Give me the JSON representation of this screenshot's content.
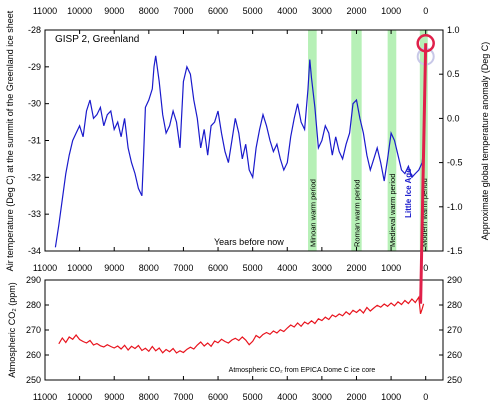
{
  "colors": {
    "temperature": "#1a1acc",
    "co2": "#e8141e",
    "warm_band": "#b6f0b6",
    "little_ice_age": "#1a1acc",
    "modern_marker": "#e0204a",
    "modern_marker_ghost": "#c8c8e8"
  },
  "chart_data": [
    {
      "type": "line",
      "title": "GISP 2, Greenland",
      "xlabel": "Years before now",
      "ylabel": "Air temperature (Deg C) at the summit of the Greenland ice sheet",
      "y2label": "Approximate global temperature anomaly (Deg C)",
      "xlim": [
        11000,
        -500
      ],
      "x_reversed": true,
      "ylim": [
        -34,
        -28
      ],
      "y2lim": [
        -1.5,
        1.0
      ],
      "grid": false,
      "x_ticks": [
        11000,
        10000,
        9000,
        8000,
        7000,
        6000,
        5000,
        4000,
        3000,
        2000,
        1000,
        0
      ],
      "y_ticks": [
        -28,
        -29,
        -30,
        -31,
        -32,
        -33,
        -34
      ],
      "y2_ticks": [
        1.0,
        0.5,
        0.0,
        -0.5,
        -1.0,
        -1.5
      ],
      "warm_periods": [
        {
          "name": "Minoan warm period",
          "x_from": 3400,
          "x_to": 3150
        },
        {
          "name": "Roman warm period",
          "x_from": 2150,
          "x_to": 1850
        },
        {
          "name": "Medieval warm period",
          "x_from": 1100,
          "x_to": 850
        },
        {
          "name": "Modern warm period",
          "x_from": 170,
          "x_to": -60
        }
      ],
      "annotations": [
        {
          "text": "Little Ice Age",
          "x": 420,
          "y": -33.1
        }
      ],
      "modern_point": {
        "x": 0,
        "y": 0.85,
        "axis": "y2"
      },
      "series": [
        {
          "x": [
            10700,
            10600,
            10500,
            10400,
            10300,
            10200,
            10100,
            10000,
            9900,
            9800,
            9700,
            9600,
            9500,
            9400,
            9300,
            9200,
            9100,
            9000,
            8900,
            8800,
            8700,
            8600,
            8500,
            8400,
            8300,
            8200,
            8150,
            8100,
            8000,
            7900,
            7850,
            7800,
            7700,
            7600,
            7500,
            7400,
            7300,
            7200,
            7100,
            7000,
            6900,
            6800,
            6700,
            6600,
            6500,
            6400,
            6300,
            6200,
            6100,
            6000,
            5900,
            5800,
            5700,
            5600,
            5500,
            5400,
            5300,
            5200,
            5100,
            5000,
            4900,
            4800,
            4700,
            4600,
            4500,
            4400,
            4300,
            4200,
            4100,
            4000,
            3900,
            3800,
            3700,
            3600,
            3500,
            3400,
            3350,
            3300,
            3200,
            3100,
            3000,
            2900,
            2800,
            2700,
            2600,
            2500,
            2400,
            2300,
            2200,
            2100,
            2000,
            1900,
            1800,
            1700,
            1600,
            1500,
            1400,
            1300,
            1200,
            1100,
            1000,
            900,
            800,
            700,
            600,
            500,
            400,
            300,
            200,
            100,
            50
          ],
          "values": [
            -33.9,
            -33.3,
            -32.6,
            -31.9,
            -31.4,
            -31.0,
            -30.8,
            -30.6,
            -30.9,
            -30.2,
            -29.9,
            -30.4,
            -30.3,
            -30.1,
            -30.6,
            -30.3,
            -30.2,
            -30.7,
            -30.5,
            -30.9,
            -30.4,
            -31.2,
            -31.6,
            -31.9,
            -32.3,
            -32.5,
            -31.4,
            -30.1,
            -29.9,
            -29.6,
            -29.0,
            -28.7,
            -29.4,
            -30.3,
            -30.8,
            -30.6,
            -30.2,
            -30.5,
            -31.2,
            -29.4,
            -29.0,
            -29.2,
            -29.9,
            -30.4,
            -31.2,
            -30.7,
            -31.4,
            -30.6,
            -30.5,
            -30.2,
            -30.8,
            -31.3,
            -31.6,
            -31.0,
            -30.4,
            -30.8,
            -31.5,
            -31.1,
            -31.8,
            -32.0,
            -31.2,
            -30.7,
            -30.3,
            -30.6,
            -31.0,
            -31.3,
            -31.1,
            -31.5,
            -31.8,
            -31.6,
            -30.9,
            -30.4,
            -30.0,
            -30.5,
            -30.7,
            -29.6,
            -28.8,
            -29.3,
            -30.1,
            -31.2,
            -31.0,
            -30.6,
            -30.8,
            -31.4,
            -30.9,
            -31.3,
            -31.5,
            -31.1,
            -30.8,
            -30.0,
            -29.9,
            -30.4,
            -30.8,
            -31.4,
            -31.8,
            -31.5,
            -31.2,
            -31.6,
            -32.1,
            -31.5,
            -30.8,
            -31.0,
            -31.4,
            -31.8,
            -31.9,
            -31.7,
            -32.0,
            -31.9,
            -31.8,
            -31.6,
            -31.1
          ]
        }
      ]
    },
    {
      "type": "line",
      "title": "",
      "xlabel": "",
      "ylabel": "Atmospheric CO₂ (ppm)",
      "annotation": "Atmospheric CO₂ from EPICA Dome C ice core",
      "xlim": [
        11000,
        -500
      ],
      "x_reversed": true,
      "ylim": [
        250,
        290
      ],
      "grid": false,
      "x_ticks": [
        11000,
        10000,
        9000,
        8000,
        7000,
        6000,
        5000,
        4000,
        3000,
        2000,
        1000,
        0
      ],
      "y_ticks": [
        250,
        260,
        270,
        280,
        290
      ],
      "series": [
        {
          "x": [
            10600,
            10500,
            10400,
            10300,
            10200,
            10100,
            10000,
            9900,
            9800,
            9700,
            9600,
            9500,
            9400,
            9300,
            9200,
            9100,
            9000,
            8900,
            8800,
            8700,
            8600,
            8500,
            8400,
            8300,
            8200,
            8100,
            8000,
            7900,
            7800,
            7700,
            7600,
            7500,
            7400,
            7300,
            7200,
            7100,
            7000,
            6900,
            6800,
            6700,
            6600,
            6500,
            6400,
            6300,
            6200,
            6100,
            6000,
            5900,
            5800,
            5700,
            5600,
            5500,
            5400,
            5300,
            5200,
            5100,
            5000,
            4900,
            4800,
            4700,
            4600,
            4500,
            4400,
            4300,
            4200,
            4100,
            4000,
            3900,
            3800,
            3700,
            3600,
            3500,
            3400,
            3300,
            3200,
            3100,
            3000,
            2900,
            2800,
            2700,
            2600,
            2500,
            2400,
            2300,
            2200,
            2100,
            2000,
            1900,
            1800,
            1700,
            1600,
            1500,
            1400,
            1300,
            1200,
            1100,
            1000,
            900,
            800,
            700,
            600,
            500,
            400,
            300,
            200,
            150,
            100,
            60
          ],
          "values": [
            264.5,
            266.8,
            265.0,
            267.2,
            266.3,
            268.0,
            266.2,
            265.4,
            264.8,
            265.8,
            264.0,
            264.6,
            263.7,
            263.2,
            264.1,
            263.4,
            262.8,
            263.6,
            262.4,
            263.9,
            262.0,
            263.5,
            262.6,
            263.8,
            261.8,
            262.7,
            261.5,
            263.4,
            261.7,
            262.8,
            260.9,
            262.2,
            261.3,
            262.6,
            260.8,
            261.7,
            261.0,
            262.3,
            263.1,
            262.4,
            264.0,
            265.2,
            263.6,
            264.8,
            263.5,
            265.6,
            264.9,
            266.3,
            265.4,
            264.8,
            266.0,
            266.7,
            265.8,
            267.2,
            266.0,
            264.1,
            265.5,
            267.8,
            266.9,
            268.2,
            269.0,
            268.3,
            269.6,
            268.8,
            270.1,
            269.4,
            270.8,
            272.0,
            271.2,
            272.8,
            271.5,
            273.2,
            272.4,
            273.7,
            272.6,
            274.5,
            273.8,
            275.1,
            274.2,
            276.0,
            275.3,
            276.4,
            275.7,
            277.3,
            276.2,
            277.9,
            277.0,
            278.2,
            276.8,
            279.0,
            277.6,
            278.8,
            279.9,
            279.1,
            280.4,
            279.5,
            280.8,
            279.7,
            281.3,
            280.2,
            281.8,
            280.6,
            282.4,
            281.0,
            283.1,
            276.5,
            278.5,
            280.5
          ]
        }
      ]
    }
  ]
}
